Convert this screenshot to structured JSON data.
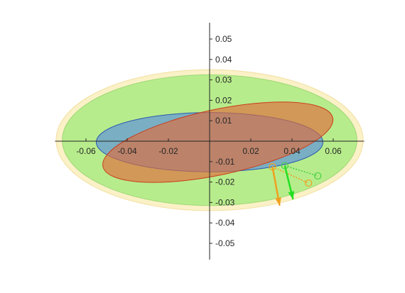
{
  "chart_data": {
    "type": "scatter",
    "title": "",
    "xlabel": "",
    "ylabel": "",
    "xlim": [
      -0.075,
      0.075
    ],
    "ylim": [
      -0.058,
      0.058
    ],
    "grid": false,
    "legend": "none",
    "axes_through_origin": true,
    "x_ticks": [
      {
        "value": -0.06,
        "label": "-0.06"
      },
      {
        "value": -0.04,
        "label": "-0.04"
      },
      {
        "value": -0.02,
        "label": "-0.02"
      },
      {
        "value": 0.02,
        "label": "0.02"
      },
      {
        "value": 0.04,
        "label": "0.04"
      },
      {
        "value": 0.06,
        "label": "0.06"
      }
    ],
    "y_ticks": [
      {
        "value": 0.05,
        "label": "0.05"
      },
      {
        "value": 0.04,
        "label": "0.04"
      },
      {
        "value": 0.03,
        "label": "0.03"
      },
      {
        "value": 0.02,
        "label": "0.02"
      },
      {
        "value": 0.01,
        "label": "0.01"
      },
      {
        "value": -0.01,
        "label": "-0.01"
      },
      {
        "value": -0.02,
        "label": "-0.02"
      },
      {
        "value": -0.03,
        "label": "-0.03"
      },
      {
        "value": -0.04,
        "label": "-0.04"
      },
      {
        "value": -0.05,
        "label": "-0.05"
      }
    ],
    "ellipses": [
      {
        "cx": 0,
        "cy": 0.0005,
        "rx": 0.0745,
        "ry": 0.0345,
        "angle_deg": 0,
        "fill": "#fbf1c7",
        "stroke": "#f2dfa0",
        "opacity": 1.0
      },
      {
        "cx": 0,
        "cy": 0.0005,
        "rx": 0.0715,
        "ry": 0.032,
        "angle_deg": 0,
        "fill": "#b7ec8c",
        "stroke": "#9fd878",
        "opacity": 1.0
      },
      {
        "cx": 0,
        "cy": -0.0005,
        "rx": 0.055,
        "ry": 0.0145,
        "angle_deg": 0,
        "fill": "#6a9fcf",
        "stroke": "#2b58b0",
        "opacity": 0.8
      },
      {
        "cx": 0.004,
        "cy": -0.0005,
        "rx": 0.057,
        "ry": 0.016,
        "angle_deg": -12,
        "fill": "#e06c3a",
        "stroke": "#c83c1c",
        "opacity": 0.65
      }
    ],
    "markers": [
      {
        "x": 0.0305,
        "y": -0.0125,
        "color": "#f0a020"
      },
      {
        "x": 0.0365,
        "y": -0.012,
        "color": "#44d044"
      },
      {
        "x": 0.0525,
        "y": -0.017,
        "color": "#44d044"
      },
      {
        "x": 0.048,
        "y": -0.0205,
        "color": "#f0a020"
      }
    ],
    "dashed_lines": [
      {
        "x": [
          0.0305,
          0.048
        ],
        "y": [
          -0.0125,
          -0.0205
        ],
        "color": "#f0a020"
      },
      {
        "x": [
          0.0365,
          0.0525
        ],
        "y": [
          -0.012,
          -0.017
        ],
        "color": "#44d044"
      }
    ],
    "arrows": [
      {
        "x0": 0.0305,
        "y0": -0.0125,
        "x1": 0.034,
        "y1": -0.0315,
        "color": "#f0a020"
      },
      {
        "x0": 0.0365,
        "y0": -0.012,
        "x1": 0.0405,
        "y1": -0.0285,
        "color": "#22e022"
      }
    ]
  }
}
